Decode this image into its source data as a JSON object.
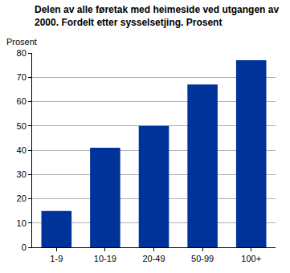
{
  "chart_data": {
    "type": "bar",
    "title": [
      "Delen av alle føretak med heimeside ved utgangen av",
      "2000. Fordelt etter sysselsetjing. Prosent"
    ],
    "y_label": "Prosent",
    "categories": [
      "1-9",
      "10-19",
      "20-49",
      "50-99",
      "100+"
    ],
    "values": [
      15,
      41,
      50,
      67,
      77
    ],
    "color": "#003399",
    "ylim": [
      0,
      80
    ],
    "yticks": [
      0,
      10,
      20,
      30,
      40,
      50,
      60,
      70,
      80
    ],
    "grid": true
  }
}
